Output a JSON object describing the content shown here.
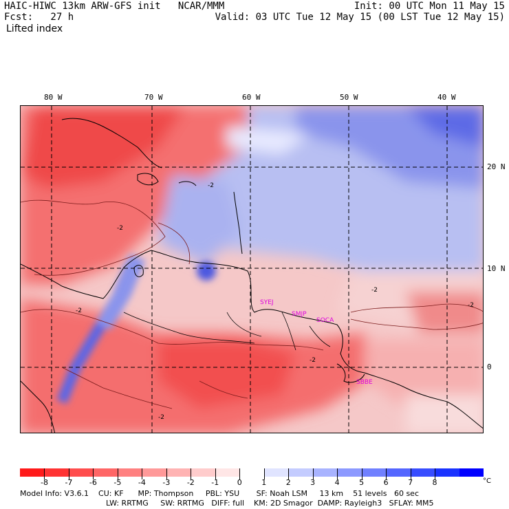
{
  "header": {
    "line1_left": "HAIC-HIWC 13km ARW-GFS init   NCAR/MMM",
    "line1_right": "Init: 00 UTC Mon 11 May 15",
    "line2_left": "Fcst:   27 h",
    "line2_right": "Valid: 03 UTC Tue 12 May 15 (00 LST Tue 12 May 15)",
    "field_name": "Lifted index"
  },
  "map": {
    "lon_labels": [
      "80 W",
      "70 W",
      "60 W",
      "50 W",
      "40 W"
    ],
    "lat_labels": [
      "20 N",
      "10 N",
      "0"
    ],
    "stations": [
      "SYEJ",
      "SMJP",
      "SOCA",
      "SBBE"
    ],
    "contour_labels": [
      "-2",
      "-2",
      "-2",
      "-2",
      "-2",
      "-2",
      "-2"
    ]
  },
  "colorbar": {
    "tick_labels": [
      "-8",
      "-7",
      "-6",
      "-5",
      "-4",
      "-3",
      "-2",
      "-1",
      "0",
      "1",
      "2",
      "3",
      "4",
      "5",
      "6",
      "7",
      "8"
    ],
    "unit": "°C",
    "colors": [
      "#ff1a1a",
      "#ff3333",
      "#ff4d4d",
      "#ff6666",
      "#ff8080",
      "#ff9999",
      "#ffb3b3",
      "#ffcccc",
      "#ffe6e6",
      "#ffffff",
      "#e0e4ff",
      "#c4ccff",
      "#a8b3ff",
      "#8c99ff",
      "#7080ff",
      "#5466ff",
      "#384dff",
      "#1a33ff",
      "#0000ff"
    ]
  },
  "footer": {
    "line1": "Model Info: V3.6.1    CU: KF      MP: Thompson     PBL: YSU       SF: Noah LSM     13 km    51 levels   60 sec",
    "line2": "LW: RRTMG     SW: RRTMG   DIFF: full    KM: 2D Smagor  DAMP: Rayleigh3   SFLAY: MM5"
  }
}
